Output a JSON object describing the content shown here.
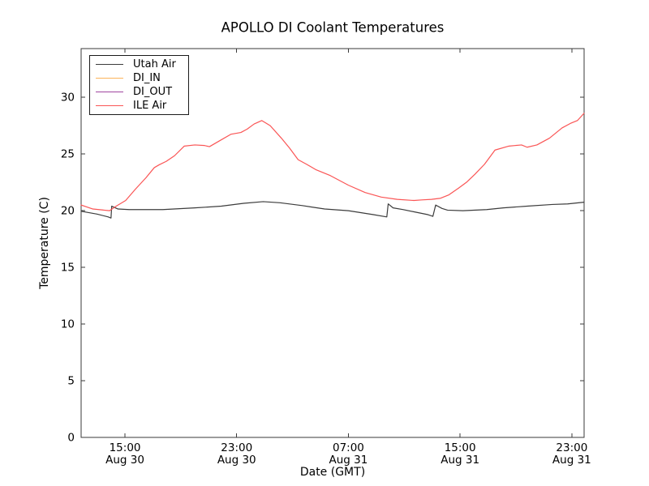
{
  "figure": {
    "background_color": "#ffffff",
    "spine_color": "#3a3a3a"
  },
  "chart_data": {
    "type": "line",
    "title": "APOLLO DI Coolant Temperatures",
    "xlabel": "Date (GMT)",
    "ylabel": "Temperature (C)",
    "x_unit": "hours since Aug 30 00:00 GMT",
    "xlim": [
      11.86,
      47.88
    ],
    "ylim": [
      0,
      34.3
    ],
    "grid": false,
    "tick_direction": "in",
    "legend_position": "upper left",
    "x_ticks": [
      {
        "value": 15,
        "time": "15:00",
        "date": "Aug 30"
      },
      {
        "value": 23,
        "time": "23:00",
        "date": "Aug 30"
      },
      {
        "value": 31,
        "time": "07:00",
        "date": "Aug 31"
      },
      {
        "value": 39,
        "time": "15:00",
        "date": "Aug 31"
      },
      {
        "value": 47,
        "time": "23:00",
        "date": "Aug 31"
      }
    ],
    "y_ticks": [
      0,
      5,
      10,
      15,
      20,
      25,
      30
    ],
    "series": [
      {
        "name": "Utah Air",
        "color": "#3c3c3c",
        "points": [
          [
            11.86,
            19.95
          ],
          [
            13.0,
            19.7
          ],
          [
            13.8,
            19.45
          ],
          [
            14.0,
            19.35
          ],
          [
            14.05,
            20.4
          ],
          [
            14.5,
            20.15
          ],
          [
            15.3,
            20.1
          ],
          [
            17.7,
            20.1
          ],
          [
            20.0,
            20.25
          ],
          [
            21.9,
            20.4
          ],
          [
            23.5,
            20.65
          ],
          [
            24.9,
            20.8
          ],
          [
            26.1,
            20.7
          ],
          [
            27.7,
            20.45
          ],
          [
            29.3,
            20.15
          ],
          [
            31.0,
            20.0
          ],
          [
            32.8,
            19.65
          ],
          [
            33.75,
            19.45
          ],
          [
            33.85,
            20.6
          ],
          [
            34.2,
            20.25
          ],
          [
            34.9,
            20.1
          ],
          [
            35.7,
            19.9
          ],
          [
            36.7,
            19.65
          ],
          [
            37.05,
            19.5
          ],
          [
            37.25,
            20.5
          ],
          [
            37.7,
            20.2
          ],
          [
            38.1,
            20.05
          ],
          [
            39.2,
            20.0
          ],
          [
            40.9,
            20.1
          ],
          [
            42.1,
            20.25
          ],
          [
            43.8,
            20.4
          ],
          [
            45.6,
            20.55
          ],
          [
            46.7,
            20.6
          ],
          [
            47.88,
            20.75
          ]
        ]
      },
      {
        "name": "DI_IN",
        "color": "#fcb45a",
        "points": []
      },
      {
        "name": "DI_OUT",
        "color": "#a046a0",
        "points": []
      },
      {
        "name": "ILE Air",
        "color": "#fa5555",
        "points": [
          [
            11.86,
            20.5
          ],
          [
            12.7,
            20.15
          ],
          [
            13.9,
            20.0
          ],
          [
            14.3,
            20.35
          ],
          [
            15.05,
            20.9
          ],
          [
            15.75,
            21.9
          ],
          [
            16.5,
            22.9
          ],
          [
            17.1,
            23.8
          ],
          [
            17.45,
            24.05
          ],
          [
            17.95,
            24.35
          ],
          [
            18.55,
            24.85
          ],
          [
            19.25,
            25.7
          ],
          [
            20.0,
            25.8
          ],
          [
            20.7,
            25.75
          ],
          [
            21.05,
            25.65
          ],
          [
            21.75,
            26.15
          ],
          [
            22.6,
            26.75
          ],
          [
            23.3,
            26.9
          ],
          [
            23.75,
            27.2
          ],
          [
            24.25,
            27.65
          ],
          [
            24.8,
            27.95
          ],
          [
            25.4,
            27.5
          ],
          [
            26.2,
            26.4
          ],
          [
            26.8,
            25.5
          ],
          [
            27.4,
            24.5
          ],
          [
            28.0,
            24.1
          ],
          [
            28.7,
            23.6
          ],
          [
            29.7,
            23.1
          ],
          [
            31.0,
            22.25
          ],
          [
            32.2,
            21.6
          ],
          [
            33.35,
            21.2
          ],
          [
            34.5,
            21.0
          ],
          [
            35.7,
            20.9
          ],
          [
            36.25,
            20.95
          ],
          [
            36.95,
            21.0
          ],
          [
            37.6,
            21.1
          ],
          [
            38.2,
            21.4
          ],
          [
            38.9,
            22.0
          ],
          [
            39.45,
            22.5
          ],
          [
            40.05,
            23.2
          ],
          [
            40.75,
            24.1
          ],
          [
            41.5,
            25.35
          ],
          [
            42.5,
            25.7
          ],
          [
            43.4,
            25.8
          ],
          [
            43.8,
            25.6
          ],
          [
            44.5,
            25.8
          ],
          [
            45.4,
            26.4
          ],
          [
            46.3,
            27.3
          ],
          [
            46.9,
            27.7
          ],
          [
            47.4,
            27.95
          ],
          [
            47.88,
            28.6
          ]
        ]
      }
    ]
  }
}
